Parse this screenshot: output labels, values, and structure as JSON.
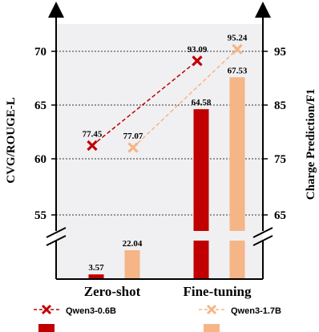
{
  "chart_data": {
    "type": "bar",
    "categories": [
      "Zero-shot",
      "Fine-tuning"
    ],
    "left_axis": {
      "label": "CVG/ROUGE-L",
      "ticks": [
        55,
        60,
        65,
        70
      ],
      "tick_labels": [
        "55",
        "60",
        "65",
        "70"
      ],
      "broken": true
    },
    "right_axis": {
      "label": "Charge Prediction/F1",
      "ticks": [
        65,
        75,
        85,
        95
      ],
      "tick_labels": [
        "65",
        "75",
        "85",
        "95"
      ],
      "broken": true
    },
    "bar_series": [
      {
        "name": "",
        "color": "#c00000",
        "values": [
          3.57,
          64.58
        ],
        "labels": [
          "3.57",
          "64.58"
        ]
      },
      {
        "name": "",
        "color": "#f5b587",
        "values": [
          22.04,
          67.53
        ],
        "labels": [
          "22.04",
          "67.53"
        ]
      }
    ],
    "line_series": [
      {
        "name": "Qwen3-0.6B",
        "color": "#c00000",
        "axis": "right",
        "values": [
          77.45,
          93.09
        ],
        "labels": [
          "77.45",
          "93.09"
        ]
      },
      {
        "name": "Qwen3-1.7B",
        "color": "#f5b587",
        "axis": "right",
        "values": [
          77.07,
          95.24
        ],
        "labels": [
          "77.07",
          "95.24"
        ]
      }
    ],
    "grid": "horizontal dotted",
    "legend_position": "bottom"
  },
  "colors": {
    "red": "#c00000",
    "orange": "#f5b587",
    "background": "#f0f0f2"
  }
}
